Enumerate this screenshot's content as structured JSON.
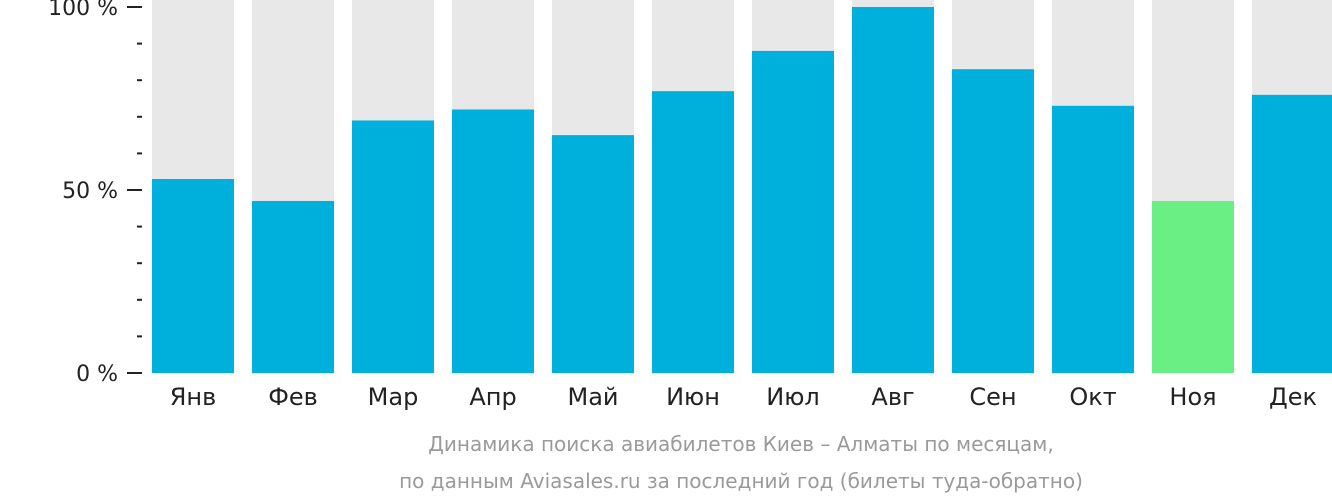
{
  "chart_data": {
    "type": "bar",
    "categories": [
      "Янв",
      "Фев",
      "Мар",
      "Апр",
      "Май",
      "Июн",
      "Июл",
      "Авг",
      "Сен",
      "Окт",
      "Ноя",
      "Дек"
    ],
    "values": [
      53,
      47,
      69,
      72,
      65,
      77,
      88,
      100,
      83,
      73,
      47,
      76
    ],
    "ylim": [
      0,
      100
    ],
    "yticks": [
      {
        "value": 100,
        "label": "100 %"
      },
      {
        "value": 50,
        "label": "50 %"
      },
      {
        "value": 0,
        "label": "0 %"
      }
    ],
    "minor_ytick_step": 10,
    "highlight_index": 10,
    "colors": {
      "bar": "#00b0dc",
      "highlight": "#6aef85",
      "track": "#e8e8e8",
      "axis": "#222222"
    },
    "caption": [
      "Динамика поиска авиабилетов Киев – Алматы по месяцам,",
      "по данным Aviasales.ru за последний год (билеты туда-обратно)"
    ],
    "grid": false,
    "legend": "none"
  }
}
